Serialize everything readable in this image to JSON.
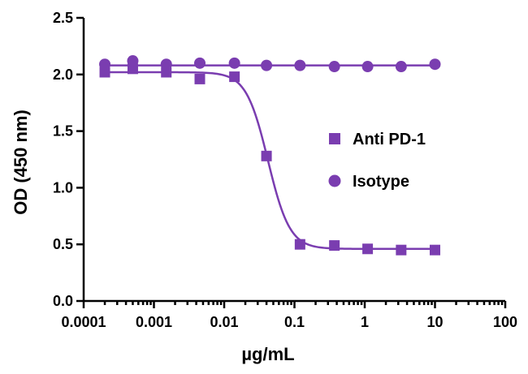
{
  "chart_data": {
    "type": "scatter",
    "title": "",
    "xlabel": "µg/mL",
    "ylabel": "OD (450 nm)",
    "x_scale": "log",
    "xlim": [
      0.0001,
      100
    ],
    "ylim": [
      0.0,
      2.5
    ],
    "x_ticks": [
      "0.0001",
      "0.001",
      "0.01",
      "0.1",
      "1",
      "10",
      "100"
    ],
    "y_ticks": [
      "0.0",
      "0.5",
      "1.0",
      "1.5",
      "2.0",
      "2.5"
    ],
    "grid": false,
    "legend_position": "center-right",
    "color": "#7a3db0",
    "series": [
      {
        "name": "Anti PD-1",
        "marker": "square",
        "x": [
          0.0002,
          0.0005,
          0.0015,
          0.0045,
          0.014,
          0.04,
          0.12,
          0.37,
          1.1,
          3.3,
          10
        ],
        "y": [
          2.02,
          2.05,
          2.02,
          1.96,
          1.98,
          1.28,
          0.5,
          0.49,
          0.46,
          0.45,
          0.45
        ],
        "fit": {
          "model": "4PL",
          "top": 2.02,
          "bottom": 0.46,
          "ec50": 0.042,
          "hill": 2.8
        }
      },
      {
        "name": "Isotype",
        "marker": "circle",
        "x": [
          0.0002,
          0.0005,
          0.0015,
          0.0045,
          0.014,
          0.04,
          0.12,
          0.37,
          1.1,
          3.3,
          10
        ],
        "y": [
          2.09,
          2.12,
          2.09,
          2.1,
          2.1,
          2.08,
          2.08,
          2.07,
          2.07,
          2.07,
          2.09
        ],
        "fit": {
          "model": "flat",
          "value": 2.08
        }
      }
    ]
  }
}
